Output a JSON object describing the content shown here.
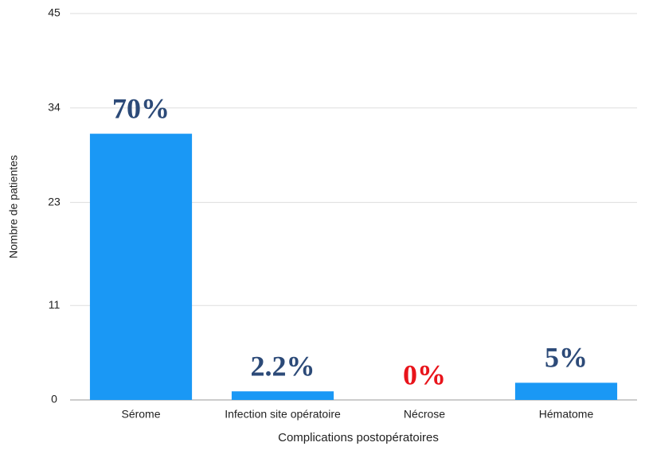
{
  "chart_data": {
    "type": "bar",
    "x_label": "Complications postopératoires",
    "y_label": "Nombre de patientes",
    "categories": [
      "Sérome",
      "Infection site opératoire",
      "Nécrose",
      "Hématome"
    ],
    "values": [
      31,
      1,
      0,
      2
    ],
    "color": "#1a98f5",
    "annotations": [
      "70%",
      "2.2%",
      "0%",
      "5%"
    ],
    "annotation_colors": [
      "#2c4a78",
      "#2c4a78",
      "#e8141b",
      "#2c4a78"
    ],
    "ylim": [
      0,
      45
    ],
    "yticks": [
      0,
      11,
      23,
      34,
      45
    ],
    "grid": true
  }
}
